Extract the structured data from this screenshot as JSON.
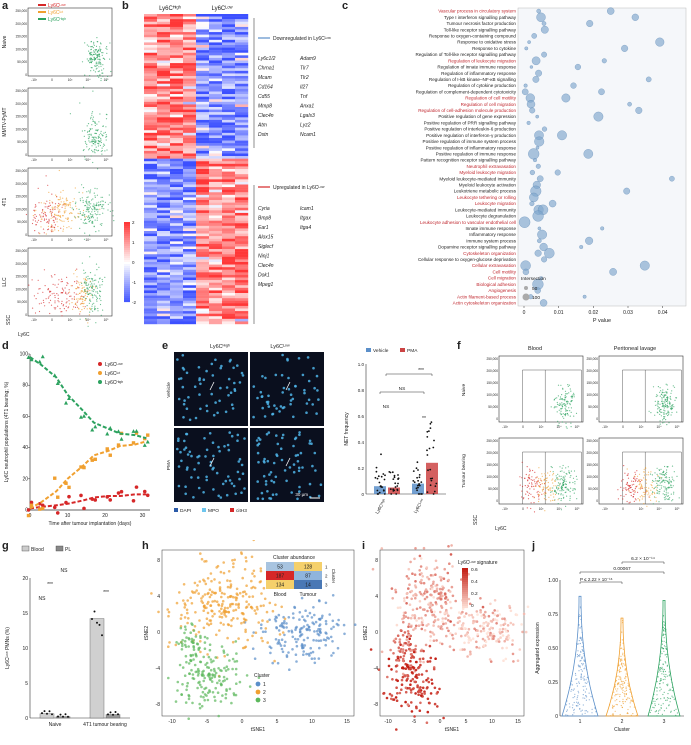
{
  "panels": {
    "a": {
      "label": "a",
      "legend": [
        "Ly6Cᴸᵒʷ",
        "Ly6Cᴵⁿᵗ",
        "Ly6Cᴴᶦᵍʰ"
      ],
      "rows": [
        "Naive",
        "MMTV-PyMT",
        "4T1",
        "LLC"
      ],
      "yticks": [
        "250,000",
        "200,000",
        "150,000",
        "100,000",
        "50,000",
        "0"
      ],
      "xticks": [
        "-10³",
        "0",
        "10³",
        "10⁴",
        "10⁵"
      ],
      "ylabel": "SSC",
      "xlabel": "Ly6C"
    },
    "b": {
      "label": "b",
      "col_headers": [
        "Ly6Cᴴᶦᵍʰ",
        "Ly6Cᴸᵒʷ"
      ],
      "down_title": "Downregulated in Ly6Cᴸᵒʷ",
      "down_genes_left": [
        "Ly6c1/2",
        "Chrna1",
        "Mcam",
        "Cd164",
        "Cd55",
        "Mmp8",
        "Clec4n",
        "Atm",
        "Dstn"
      ],
      "down_genes_right": [
        "Adam9",
        "Tlr7",
        "Tlr2",
        "Il27",
        "Tnf",
        "Anxa1",
        "Lgals3",
        "Lyz2",
        "Ncam1"
      ],
      "up_title": "Upregulated in Ly6Cᴸᵒʷ",
      "up_genes_left": [
        "Cyria",
        "Bmp8",
        "Ear1",
        "Alox15",
        "Siglecf",
        "Ninj1",
        "Clec4n",
        "Dok1",
        "Mpeg1"
      ],
      "up_genes_right": [
        "Icam1",
        "Itgax",
        "Itga4"
      ],
      "scale": [
        "2",
        "1",
        "0",
        "-1",
        "-2"
      ]
    },
    "c": {
      "label": "c",
      "xlabel": "P value",
      "xticks": [
        "0",
        "0.01",
        "0.02",
        "0.03",
        "0.04"
      ],
      "legend_title": "Intersection",
      "legend_values": [
        "50",
        "100"
      ]
    },
    "d": {
      "label": "d",
      "ylabel": "Ly6C neutrophil populations (4T1 bearing; %)",
      "xlabel": "Time after tumour implantation (days)",
      "yticks": [
        "100",
        "80",
        "60",
        "40",
        "20",
        "0"
      ],
      "xticks": [
        "0",
        "10",
        "20",
        "30"
      ],
      "legend": [
        "Ly6Cᴸᵒʷ",
        "Ly6Cᴵⁿᵗ",
        "Ly6Cᴴᶦᵍʰ"
      ]
    },
    "e": {
      "label": "e",
      "col_headers": [
        "Ly6Cᴴᶦᵍʰ",
        "Ly6Cᴸᵒʷ"
      ],
      "row_labels": [
        "Vehicle",
        "PMA"
      ],
      "scalebar": "30 μm",
      "channels": [
        "DAPI",
        "MPO",
        "citH3"
      ],
      "legend": [
        "Vehicle",
        "PMA"
      ],
      "ylabel": "NET frequency",
      "yticks": [
        "1.0",
        "0.8",
        "0.6",
        "0.4",
        "0.2",
        "0"
      ],
      "xcats": [
        "Ly6Cᴴᶦᵍʰ",
        "Ly6Cᴸᵒʷ"
      ],
      "sig": [
        "***",
        "NS",
        "NS",
        "**"
      ]
    },
    "f": {
      "label": "f",
      "col_headers": [
        "Blood",
        "Peritoneal lavage"
      ],
      "row_labels": [
        "Naive",
        "Tumour bearing"
      ],
      "yticks": [
        "250,000",
        "200,000",
        "150,000",
        "100,000",
        "50,000",
        "0"
      ],
      "xticks": [
        "-10³",
        "0",
        "10³",
        "10⁴",
        "10⁵"
      ],
      "ylabel": "SSC",
      "xlabel": "Ly6C"
    },
    "g": {
      "label": "g",
      "legend": [
        "Blood",
        "PL"
      ],
      "ylabel": "Ly6Cᴸᵒʷ PMNs (%)",
      "yticks": [
        "20",
        "15",
        "10",
        "5",
        "0"
      ],
      "xcats": [
        "Naive",
        "4T1 tumour bearing"
      ],
      "sig": [
        "NS",
        "***",
        "NS",
        "***"
      ]
    },
    "h": {
      "label": "h",
      "xlabel": "tSNE1",
      "ylabel": "tSNE2",
      "xticks": [
        "-10",
        "-5",
        "0",
        "5",
        "10",
        "15"
      ],
      "yticks": [
        "8",
        "4",
        "0",
        "-4",
        "-8"
      ],
      "abundance_title": "Cluster abundance",
      "abundance_rows": [
        [
          "53",
          "128"
        ],
        [
          "187",
          "87"
        ],
        [
          "134",
          "14"
        ]
      ],
      "abundance_cols": [
        "Blood",
        "Tumour"
      ],
      "abundance_side": [
        "1",
        "2",
        "3"
      ],
      "abundance_side_label": "Cluster",
      "legend_title": "Cluster",
      "legend": [
        "1",
        "2",
        "3"
      ]
    },
    "i": {
      "label": "i",
      "xlabel": "tSNE1",
      "ylabel": "tSNE2",
      "xticks": [
        "-10",
        "-5",
        "0",
        "5",
        "10",
        "15"
      ],
      "yticks": [
        "8",
        "4",
        "0",
        "-4",
        "-8"
      ],
      "cbar_title": "Ly6Cᴸᵒʷ signature",
      "cbar_ticks": [
        "0.6",
        "0.4",
        "0.2",
        "0"
      ]
    },
    "j": {
      "label": "j",
      "ylabel": "Aggregated expression",
      "xlabel": "Cluster",
      "xticks": [
        "1",
        "2",
        "3"
      ],
      "yticks": [
        "1.00",
        "0.75",
        "0.50",
        "0.25",
        "0"
      ],
      "p1": "6.2 × 10⁻¹⁴",
      "p2": "0.00067",
      "p3": "P ≤ 2.22 × 10⁻¹⁶"
    }
  },
  "pathways": [
    {
      "t": "Vascular process in circulatory system",
      "r": 1
    },
    {
      "t": "Type I interferon signalling pathway",
      "r": 0
    },
    {
      "t": "Tumour necrosis factor production",
      "r": 0
    },
    {
      "t": "Toll-like receptor signalling pathway",
      "r": 0
    },
    {
      "t": "Response to oxygen-containing compound",
      "r": 0
    },
    {
      "t": "Response to oxidative stress",
      "r": 0
    },
    {
      "t": "Response to cytokine",
      "r": 0
    },
    {
      "t": "Regulation of Toll-like receptor signalling pathway",
      "r": 0
    },
    {
      "t": "Regulation of leukocyte migration",
      "r": 1
    },
    {
      "t": "Regulation of innate immune response",
      "r": 0
    },
    {
      "t": "Regulation of inflammatory response",
      "r": 0
    },
    {
      "t": "Regulation of I-kB kinase–NF-κB signalling",
      "r": 0
    },
    {
      "t": "Regulation of cytokine production",
      "r": 0
    },
    {
      "t": "Regulation of complement-dependent cytotoxicity",
      "r": 0
    },
    {
      "t": "Regulation of cell motility",
      "r": 1
    },
    {
      "t": "Regulation of cell migration",
      "r": 1
    },
    {
      "t": "Regulation of cell-adhesion molecule production",
      "r": 1
    },
    {
      "t": "Positive regulation of gene expression",
      "r": 0
    },
    {
      "t": "Positive regulation of PRR signalling pathway",
      "r": 0
    },
    {
      "t": "Positive regulation of interleukin-6 production",
      "r": 0
    },
    {
      "t": "Positive regulation of interferon-γ production",
      "r": 0
    },
    {
      "t": "Positive regulation of immune system process",
      "r": 0
    },
    {
      "t": "Positive regulation of inflammatory response",
      "r": 0
    },
    {
      "t": "Positive regulation of immune response",
      "r": 0
    },
    {
      "t": "Pattern recognition receptor signalling pathway",
      "r": 0
    },
    {
      "t": "Neutrophil extravasation",
      "r": 1
    },
    {
      "t": "Myeloid leukocyte migration",
      "r": 1
    },
    {
      "t": "Myeloid leukocyte-mediated immunity",
      "r": 0
    },
    {
      "t": "Myeloid leukocyte activation",
      "r": 0
    },
    {
      "t": "Leukotriene metabolic process",
      "r": 0
    },
    {
      "t": "Leukocyte tethering or rolling",
      "r": 1
    },
    {
      "t": "Leukocyte migration",
      "r": 1
    },
    {
      "t": "Leukocyte-mediated immunity",
      "r": 0
    },
    {
      "t": "Leukocyte degranulation",
      "r": 0
    },
    {
      "t": "Leukocyte adhesion to vascular endothelial cell",
      "r": 1
    },
    {
      "t": "Innate immune response",
      "r": 0
    },
    {
      "t": "Inflammatory response",
      "r": 0
    },
    {
      "t": "Immune system process",
      "r": 0
    },
    {
      "t": "Dopamine receptor signalling pathway",
      "r": 0
    },
    {
      "t": "Cytoskeleton organization",
      "r": 1
    },
    {
      "t": "Cellular response to oxygen-glucose deprivation",
      "r": 0
    },
    {
      "t": "Cellular extravasation",
      "r": 1
    },
    {
      "t": "Cell motility",
      "r": 1
    },
    {
      "t": "Cell migration",
      "r": 1
    },
    {
      "t": "Biological adhesion",
      "r": 1
    },
    {
      "t": "Angiogenesis",
      "r": 1
    },
    {
      "t": "Actin filament-based process",
      "r": 1
    },
    {
      "t": "Actin cytoskeleton organization",
      "r": 1
    }
  ],
  "chart_data": [
    {
      "type": "line",
      "x": [
        0,
        3,
        7,
        10,
        14,
        17,
        21,
        24,
        28,
        31
      ],
      "series": [
        {
          "name": "Ly6Cᴸᵒʷ",
          "values": [
            1,
            2,
            3,
            4,
            6,
            8,
            9,
            9,
            10,
            10
          ]
        },
        {
          "name": "Ly6Cᴵⁿᵗ",
          "values": [
            1,
            5,
            12,
            20,
            28,
            35,
            38,
            41,
            42,
            44
          ]
        },
        {
          "name": "Ly6Cᴴᶦᵍʰ",
          "values": [
            98,
            93,
            85,
            74,
            64,
            56,
            52,
            49,
            48,
            46
          ]
        }
      ],
      "xlabel": "Time after tumour implantation (days)",
      "ylabel": "Ly6C neutrophil populations (4T1 bearing; %)",
      "ylim": [
        0,
        100
      ]
    },
    {
      "type": "bar",
      "categories": [
        "Ly6Cᴴᶦᵍʰ",
        "Ly6Cᴸᵒʷ"
      ],
      "series": [
        {
          "name": "Vehicle",
          "values": [
            0.06,
            0.08
          ]
        },
        {
          "name": "PMA",
          "values": [
            0.05,
            0.24
          ]
        }
      ],
      "ylabel": "NET frequency",
      "ylim": [
        0,
        1.0
      ]
    },
    {
      "type": "bar",
      "categories": [
        "Naive",
        "4T1 tumour bearing"
      ],
      "series": [
        {
          "name": "Blood",
          "values": [
            0.6,
            14.2
          ]
        },
        {
          "name": "PL",
          "values": [
            0.2,
            0.5
          ]
        }
      ],
      "ylabel": "Ly6Cᴸᵒʷ PMNs (%)",
      "ylim": [
        0,
        20
      ]
    }
  ]
}
